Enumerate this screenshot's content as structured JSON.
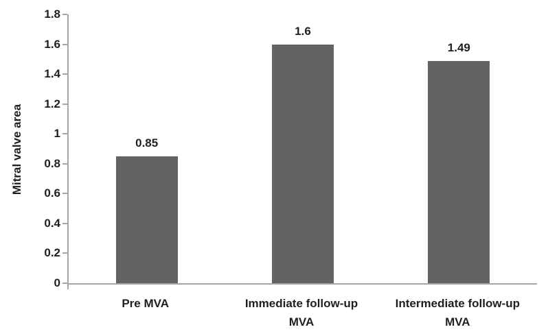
{
  "chart_data": {
    "type": "bar",
    "categories": [
      "Pre MVA",
      "Immediate follow-up\nMVA",
      "Intermediate follow-up\nMVA"
    ],
    "values": [
      0.85,
      1.6,
      1.49
    ],
    "value_labels": [
      "0.85",
      "1.6",
      "1.49"
    ],
    "title": "",
    "xlabel": "",
    "ylabel": "Mitral valve area",
    "ylim": [
      0,
      1.8
    ],
    "yticks": [
      "0",
      "0.2",
      "0.4",
      "0.6",
      "0.8",
      "1",
      "1.2",
      "1.4",
      "1.6",
      "1.8"
    ],
    "grid": false,
    "legend": null,
    "colors": {
      "bar": "#636363",
      "axis": "#a6a6a6",
      "text": "#1f1f1f",
      "background": "#ffffff"
    }
  }
}
